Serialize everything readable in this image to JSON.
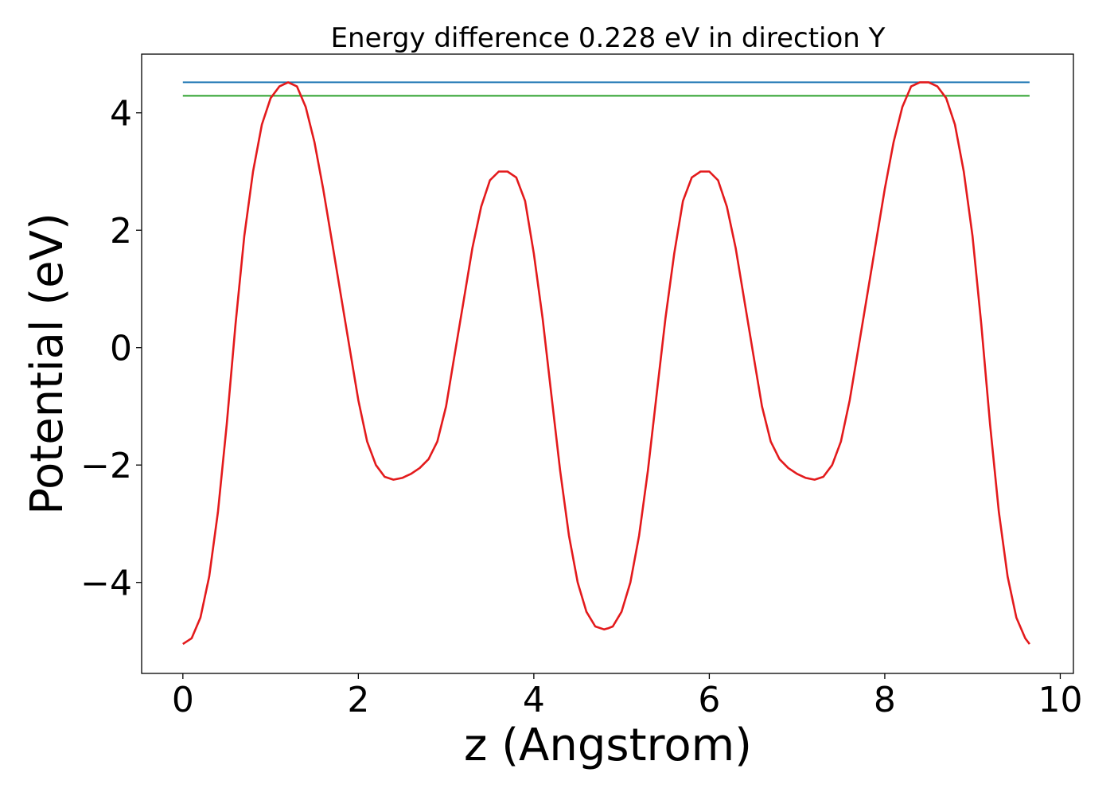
{
  "chart_data": {
    "type": "line",
    "title": "Energy difference 0.228 eV in direction Y",
    "xlabel": "z (Angstrom)",
    "ylabel": "Potential (eV)",
    "xlim": [
      -0.47,
      10.15
    ],
    "ylim": [
      -5.55,
      5.0
    ],
    "grid": false,
    "x_ticks": [
      0,
      2,
      4,
      6,
      8,
      10
    ],
    "x_tick_labels": [
      "0",
      "2",
      "4",
      "6",
      "8",
      "10"
    ],
    "y_ticks": [
      -4,
      -2,
      0,
      2,
      4
    ],
    "y_tick_labels": [
      "−4",
      "−2",
      "0",
      "2",
      "4"
    ],
    "series": [
      {
        "color": "#1f77b4",
        "x": [
          0,
          9.65
        ],
        "y": [
          4.52,
          4.52
        ]
      },
      {
        "color": "#2ca02c",
        "x": [
          0,
          9.65
        ],
        "y": [
          4.29,
          4.29
        ]
      },
      {
        "color": "#e31a1c",
        "x": [
          0,
          0.1,
          0.2,
          0.3,
          0.4,
          0.5,
          0.6,
          0.7,
          0.8,
          0.9,
          1.0,
          1.1,
          1.2,
          1.3,
          1.4,
          1.5,
          1.6,
          1.7,
          1.8,
          1.9,
          2.0,
          2.1,
          2.2,
          2.3,
          2.4,
          2.5,
          2.6,
          2.7,
          2.8,
          2.9,
          3.0,
          3.1,
          3.2,
          3.3,
          3.4,
          3.5,
          3.6,
          3.7,
          3.8,
          3.9,
          4.0,
          4.1,
          4.2,
          4.3,
          4.4,
          4.5,
          4.6,
          4.7,
          4.8,
          4.85,
          4.9,
          5.0,
          5.1,
          5.2,
          5.3,
          5.4,
          5.5,
          5.6,
          5.7,
          5.8,
          5.9,
          6.0,
          6.1,
          6.2,
          6.3,
          6.4,
          6.5,
          6.6,
          6.7,
          6.8,
          6.9,
          7.0,
          7.1,
          7.2,
          7.3,
          7.4,
          7.5,
          7.6,
          7.7,
          7.8,
          7.9,
          8.0,
          8.1,
          8.2,
          8.3,
          8.4,
          8.5,
          8.6,
          8.7,
          8.8,
          8.9,
          9.0,
          9.1,
          9.2,
          9.3,
          9.4,
          9.5,
          9.6,
          9.65
        ],
        "y": [
          -5.05,
          -4.95,
          -4.6,
          -3.9,
          -2.8,
          -1.3,
          0.4,
          1.9,
          3.0,
          3.8,
          4.25,
          4.45,
          4.52,
          4.45,
          4.1,
          3.5,
          2.7,
          1.8,
          0.9,
          0.0,
          -0.9,
          -1.6,
          -2.0,
          -2.2,
          -2.25,
          -2.22,
          -2.15,
          -2.05,
          -1.9,
          -1.6,
          -1.0,
          -0.1,
          0.8,
          1.7,
          2.4,
          2.85,
          3.0,
          3.0,
          2.9,
          2.5,
          1.6,
          0.5,
          -0.8,
          -2.1,
          -3.2,
          -4.0,
          -4.5,
          -4.75,
          -4.8,
          -4.78,
          -4.75,
          -4.5,
          -4.0,
          -3.2,
          -2.1,
          -0.8,
          0.5,
          1.6,
          2.5,
          2.9,
          3.0,
          3.0,
          2.85,
          2.4,
          1.7,
          0.8,
          -0.1,
          -1.0,
          -1.6,
          -1.9,
          -2.05,
          -2.15,
          -2.22,
          -2.25,
          -2.2,
          -2.0,
          -1.6,
          -0.9,
          0.0,
          0.9,
          1.8,
          2.7,
          3.5,
          4.1,
          4.45,
          4.52,
          4.52,
          4.45,
          4.25,
          3.8,
          3.0,
          1.9,
          0.4,
          -1.3,
          -2.8,
          -3.9,
          -4.6,
          -4.95,
          -5.05
        ]
      }
    ]
  }
}
